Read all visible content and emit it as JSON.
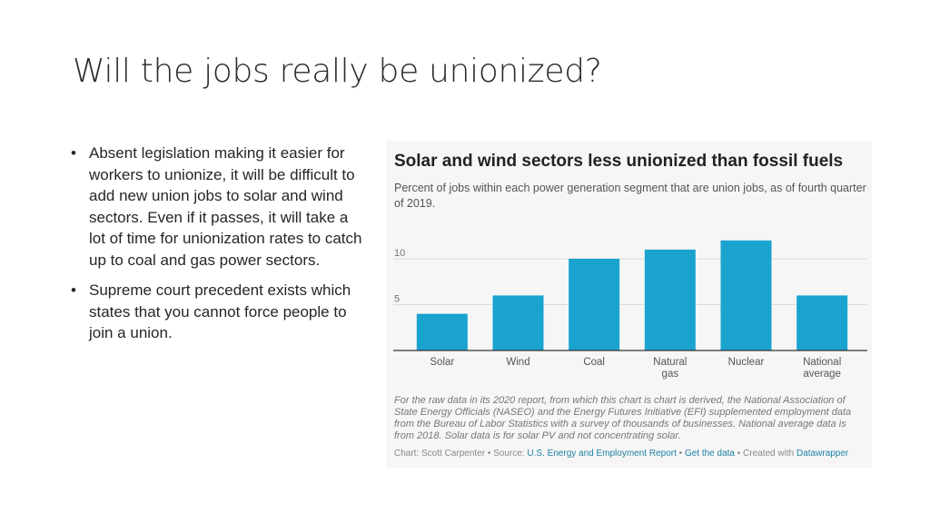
{
  "slide": {
    "title": "Will the jobs really be unionized?",
    "bullets": [
      "Absent legislation making it easier for workers to unionize, it will be difficult to add new union jobs to solar and wind sectors. Even if it passes, it will take a lot of time for unionization rates to catch up to coal and gas power sectors.",
      "Supreme court precedent exists which states that you cannot force people to join a union."
    ],
    "bullet_glyph": "•"
  },
  "colors": {
    "bar": "#1aa3cf",
    "grid": "#dddddd",
    "axis": "#333333"
  },
  "chart_data": {
    "type": "bar",
    "title": "Solar and wind sectors less unionized than fossil fuels",
    "subtitle": "Percent of jobs within each power generation segment that are union jobs, as of fourth quarter of 2019.",
    "categories": [
      "Solar",
      "Wind",
      "Coal",
      "Natural gas",
      "Nuclear",
      "National average"
    ],
    "values": [
      4,
      6,
      10,
      11,
      12,
      6
    ],
    "yticks": [
      5,
      10
    ],
    "ylim": [
      0,
      15
    ],
    "xlabel": "",
    "ylabel": "",
    "grid": true,
    "notes": "For the raw data in its 2020 report, from which this chart is chart is derived, the National Association of State Energy Officials (NASEO) and the Energy Futures Initiative (EFI) supplemented employment data from the Bureau of Labor Statistics with a survey of thousands of businesses. National average data is from 2018. Solar data is for solar PV and not concentrating solar.",
    "footer": {
      "chart_prefix": "Chart: Scott Carpenter • Source: ",
      "source_link": "U.S. Energy and Employment Report",
      "sep1": " • ",
      "data_link": "Get the data",
      "sep2": " • Created with ",
      "tool_link": "Datawrapper"
    }
  }
}
